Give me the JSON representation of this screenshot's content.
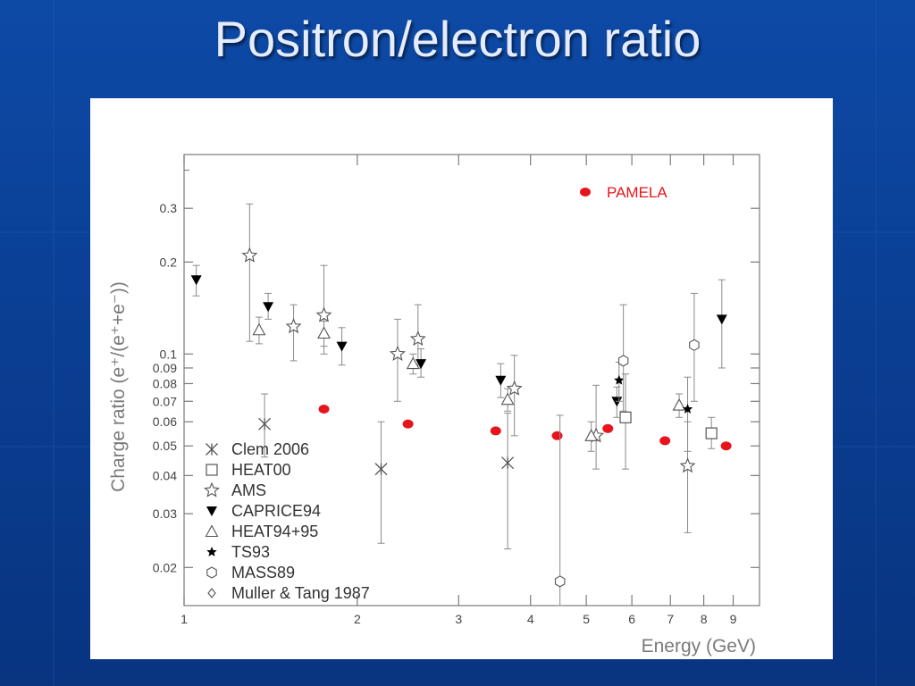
{
  "slide": {
    "title": "Positron/electron ratio"
  },
  "colors": {
    "background": "#0a3f94",
    "title_text": "#e6ecff",
    "axis": "#7a7a7a",
    "pamela": "#e8141c",
    "markers": "#555555"
  },
  "chart_data": {
    "type": "scatter",
    "xlabel": "Energy (GeV)",
    "ylabel": "Charge ratio (e⁺/(e⁺+e⁻))",
    "xscale": "log",
    "yscale": "log",
    "xlim": [
      1,
      10
    ],
    "ylim": [
      0.015,
      0.45
    ],
    "x_ticks": [
      1,
      2,
      3,
      4,
      5,
      6,
      7,
      8,
      9
    ],
    "y_ticks": [
      0.02,
      0.03,
      0.04,
      0.05,
      0.06,
      0.07,
      0.08,
      0.09,
      0.1,
      0.2,
      0.3
    ],
    "y_tick_labels": [
      "0.02",
      "0.03",
      "0.04",
      "0.05",
      "0.06",
      "0.07",
      "0.08",
      "0.09",
      "0.1",
      "0.2",
      "0.3"
    ],
    "grid": false,
    "series": [
      {
        "name": "PAMELA",
        "marker": "filled-circle",
        "color": "#e8141c",
        "points": [
          {
            "x": 1.75,
            "y": 0.066
          },
          {
            "x": 2.45,
            "y": 0.059
          },
          {
            "x": 3.48,
            "y": 0.056
          },
          {
            "x": 4.45,
            "y": 0.054
          },
          {
            "x": 5.45,
            "y": 0.057
          },
          {
            "x": 6.85,
            "y": 0.052
          },
          {
            "x": 8.75,
            "y": 0.05
          }
        ]
      },
      {
        "name": "Clem 2006",
        "marker": "asterisk",
        "color": "#555555",
        "points": [
          {
            "x": 1.38,
            "y": 0.059,
            "ylo": 0.046,
            "yhi": 0.074
          },
          {
            "x": 2.2,
            "y": 0.042,
            "ylo": 0.024,
            "yhi": 0.06
          },
          {
            "x": 3.65,
            "y": 0.044,
            "ylo": 0.023,
            "yhi": 0.064
          }
        ]
      },
      {
        "name": "HEAT00",
        "marker": "open-square",
        "color": "#555555",
        "points": [
          {
            "x": 5.85,
            "y": 0.062,
            "ylo": 0.042,
            "yhi": 0.086
          },
          {
            "x": 8.25,
            "y": 0.055,
            "ylo": 0.049,
            "yhi": 0.062
          }
        ]
      },
      {
        "name": "AMS",
        "marker": "open-star",
        "color": "#555555",
        "points": [
          {
            "x": 1.3,
            "y": 0.21,
            "ylo": 0.11,
            "yhi": 0.31
          },
          {
            "x": 1.55,
            "y": 0.123,
            "ylo": 0.095,
            "yhi": 0.145
          },
          {
            "x": 1.75,
            "y": 0.134,
            "ylo": 0.1,
            "yhi": 0.195
          },
          {
            "x": 2.35,
            "y": 0.1,
            "ylo": 0.07,
            "yhi": 0.13
          },
          {
            "x": 2.55,
            "y": 0.112,
            "ylo": 0.09,
            "yhi": 0.145
          },
          {
            "x": 3.75,
            "y": 0.077,
            "ylo": 0.054,
            "yhi": 0.099
          },
          {
            "x": 5.2,
            "y": 0.054,
            "ylo": 0.042,
            "yhi": 0.079
          },
          {
            "x": 7.5,
            "y": 0.043,
            "ylo": 0.026,
            "yhi": 0.06
          }
        ]
      },
      {
        "name": "CAPRICE94",
        "marker": "filled-triangle-down",
        "color": "#000000",
        "points": [
          {
            "x": 1.05,
            "y": 0.175,
            "ylo": 0.155,
            "yhi": 0.195
          },
          {
            "x": 1.4,
            "y": 0.143,
            "ylo": 0.13,
            "yhi": 0.158
          },
          {
            "x": 1.88,
            "y": 0.106,
            "ylo": 0.092,
            "yhi": 0.122
          },
          {
            "x": 2.58,
            "y": 0.093,
            "ylo": 0.084,
            "yhi": 0.104
          },
          {
            "x": 3.55,
            "y": 0.082,
            "ylo": 0.072,
            "yhi": 0.093
          },
          {
            "x": 5.65,
            "y": 0.07,
            "ylo": 0.062,
            "yhi": 0.078
          },
          {
            "x": 8.6,
            "y": 0.13,
            "ylo": 0.09,
            "yhi": 0.175
          }
        ]
      },
      {
        "name": "HEAT94+95",
        "marker": "open-triangle-up",
        "color": "#555555",
        "points": [
          {
            "x": 1.35,
            "y": 0.12,
            "ylo": 0.108,
            "yhi": 0.132
          },
          {
            "x": 1.75,
            "y": 0.117,
            "ylo": 0.106,
            "yhi": 0.128
          },
          {
            "x": 2.5,
            "y": 0.093,
            "ylo": 0.086,
            "yhi": 0.1
          },
          {
            "x": 3.65,
            "y": 0.071,
            "ylo": 0.065,
            "yhi": 0.077
          },
          {
            "x": 5.1,
            "y": 0.054,
            "ylo": 0.048,
            "yhi": 0.06
          },
          {
            "x": 7.25,
            "y": 0.068,
            "ylo": 0.062,
            "yhi": 0.074
          }
        ]
      },
      {
        "name": "TS93",
        "marker": "filled-star",
        "color": "#000000",
        "points": [
          {
            "x": 5.7,
            "y": 0.082,
            "ylo": 0.07,
            "yhi": 0.094
          },
          {
            "x": 7.5,
            "y": 0.066,
            "ylo": 0.048,
            "yhi": 0.084
          }
        ]
      },
      {
        "name": "MASS89",
        "marker": "open-hexagon",
        "color": "#555555",
        "points": [
          {
            "x": 4.5,
            "y": 0.018,
            "ylo": 0.015,
            "yhi": 0.063
          },
          {
            "x": 5.8,
            "y": 0.095,
            "ylo": 0.065,
            "yhi": 0.145
          },
          {
            "x": 7.7,
            "y": 0.107,
            "ylo": 0.07,
            "yhi": 0.158
          }
        ]
      },
      {
        "name": "Muller & Tang 1987",
        "marker": "open-diamond",
        "color": "#555555",
        "points": []
      }
    ],
    "legend_lower_left": [
      "Clem 2006",
      "HEAT00",
      "AMS",
      "CAPRICE94",
      "HEAT94+95",
      "TS93",
      "MASS89",
      "Muller & Tang 1987"
    ],
    "legend_upper_right": [
      "PAMELA"
    ],
    "legend_placement": [
      "lower-left",
      "upper-right"
    ]
  }
}
